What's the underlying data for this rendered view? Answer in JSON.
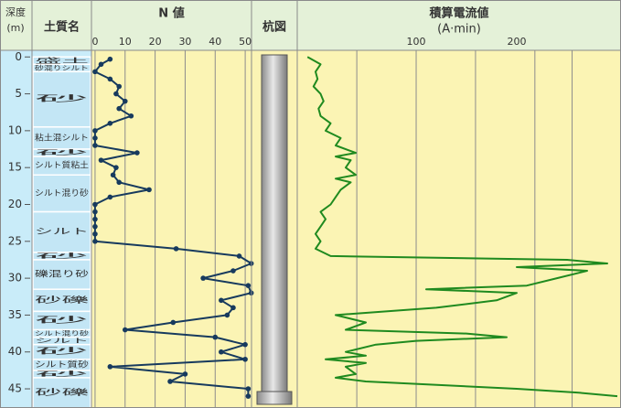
{
  "depth_axis": {
    "title_lines": [
      "深度",
      "(m)"
    ],
    "ylim": [
      -0.9,
      47.6
    ],
    "yticks": [
      0,
      5,
      10,
      15,
      20,
      25,
      30,
      35,
      40,
      45
    ]
  },
  "chart_data": [
    {
      "type": "strata",
      "title": "土質名",
      "layers": [
        {
          "top": 0,
          "bottom": 1,
          "label": "盛土"
        },
        {
          "top": 1,
          "bottom": 2,
          "label": "砂混りシルト"
        },
        {
          "top": 2,
          "bottom": 9.5,
          "label": "砂"
        },
        {
          "top": 9.5,
          "bottom": 12.5,
          "label": "粘土混シルト"
        },
        {
          "top": 12.5,
          "bottom": 13.5,
          "label": "砂"
        },
        {
          "top": 13.5,
          "bottom": 16,
          "label": "シルト質粘土"
        },
        {
          "top": 16,
          "bottom": 21,
          "label": "シルト混り砂"
        },
        {
          "top": 21,
          "bottom": 26.5,
          "label": "シルト"
        },
        {
          "top": 26.5,
          "bottom": 27.5,
          "label": "砂"
        },
        {
          "top": 27.5,
          "bottom": 31.5,
          "label": "礫混り砂"
        },
        {
          "top": 31.5,
          "bottom": 34.5,
          "label": "砂礫"
        },
        {
          "top": 34.5,
          "bottom": 37,
          "label": "砂"
        },
        {
          "top": 37,
          "bottom": 38,
          "label": "シルト混り砂"
        },
        {
          "top": 38,
          "bottom": 39,
          "label": "シルト"
        },
        {
          "top": 39,
          "bottom": 41,
          "label": "砂"
        },
        {
          "top": 41,
          "bottom": 42.5,
          "label": "シルト質砂"
        },
        {
          "top": 42.5,
          "bottom": 43.5,
          "label": "砂"
        },
        {
          "top": 43.5,
          "bottom": 47.6,
          "label": "砂礫"
        }
      ]
    },
    {
      "type": "line",
      "title": "N 値",
      "color": "#173a5e",
      "markers": true,
      "xlim": [
        -1.2,
        52.1
      ],
      "xticks": [
        0,
        10,
        20,
        30,
        40,
        50
      ],
      "grid": true,
      "depth": [
        0.3,
        1,
        2,
        3,
        4,
        5,
        6,
        7,
        8,
        9,
        10,
        11,
        12,
        13,
        14,
        15,
        16,
        17,
        18,
        19,
        20,
        21,
        22,
        23,
        24,
        25,
        26,
        27,
        28,
        29,
        30,
        31,
        32,
        33,
        34,
        35,
        36,
        37,
        38,
        39,
        40,
        41,
        42,
        43,
        44,
        45,
        46
      ],
      "values": [
        5,
        2,
        0,
        5,
        8,
        7,
        10,
        8,
        12,
        5,
        0,
        0,
        0,
        14,
        2,
        7,
        6,
        8,
        18,
        5,
        0,
        0,
        0,
        0,
        0,
        0,
        27,
        48,
        52,
        46,
        36,
        51,
        52,
        42,
        46,
        44,
        26,
        10,
        40,
        50,
        42,
        50,
        5,
        30,
        25,
        51,
        51
      ]
    },
    {
      "type": "pile",
      "title": "杭図"
    },
    {
      "type": "line",
      "title": "積算電流値",
      "subtitle": "(A·min)",
      "color": "#1f8a1f",
      "markers": false,
      "xlim": [
        -18.2,
        303.6
      ],
      "xticks": [
        100,
        200
      ],
      "xgrid": [
        41,
        100,
        159,
        218,
        255
      ],
      "depth": [
        0,
        1,
        2,
        3,
        4,
        5,
        6,
        7,
        8,
        9,
        10,
        11,
        12,
        13,
        13.5,
        14,
        15,
        16,
        16.5,
        17,
        18,
        19,
        20,
        21,
        22,
        23,
        24,
        25,
        26,
        27,
        27.5,
        28,
        28.5,
        29,
        30,
        31,
        31.5,
        32,
        33,
        34,
        35,
        36,
        37,
        37.5,
        38,
        38.5,
        39,
        40,
        40.5,
        41,
        41.5,
        42,
        43,
        43.5,
        44,
        45,
        45.5,
        46
      ],
      "values": [
        -8,
        5,
        0,
        2,
        -2,
        5,
        8,
        3,
        5,
        15,
        10,
        25,
        20,
        40,
        20,
        35,
        30,
        40,
        20,
        35,
        25,
        20,
        15,
        5,
        10,
        5,
        0,
        5,
        0,
        15,
        250,
        290,
        200,
        270,
        240,
        210,
        110,
        200,
        180,
        120,
        20,
        50,
        30,
        150,
        190,
        100,
        60,
        30,
        50,
        10,
        50,
        30,
        40,
        20,
        50,
        200,
        260,
        300
      ]
    }
  ]
}
